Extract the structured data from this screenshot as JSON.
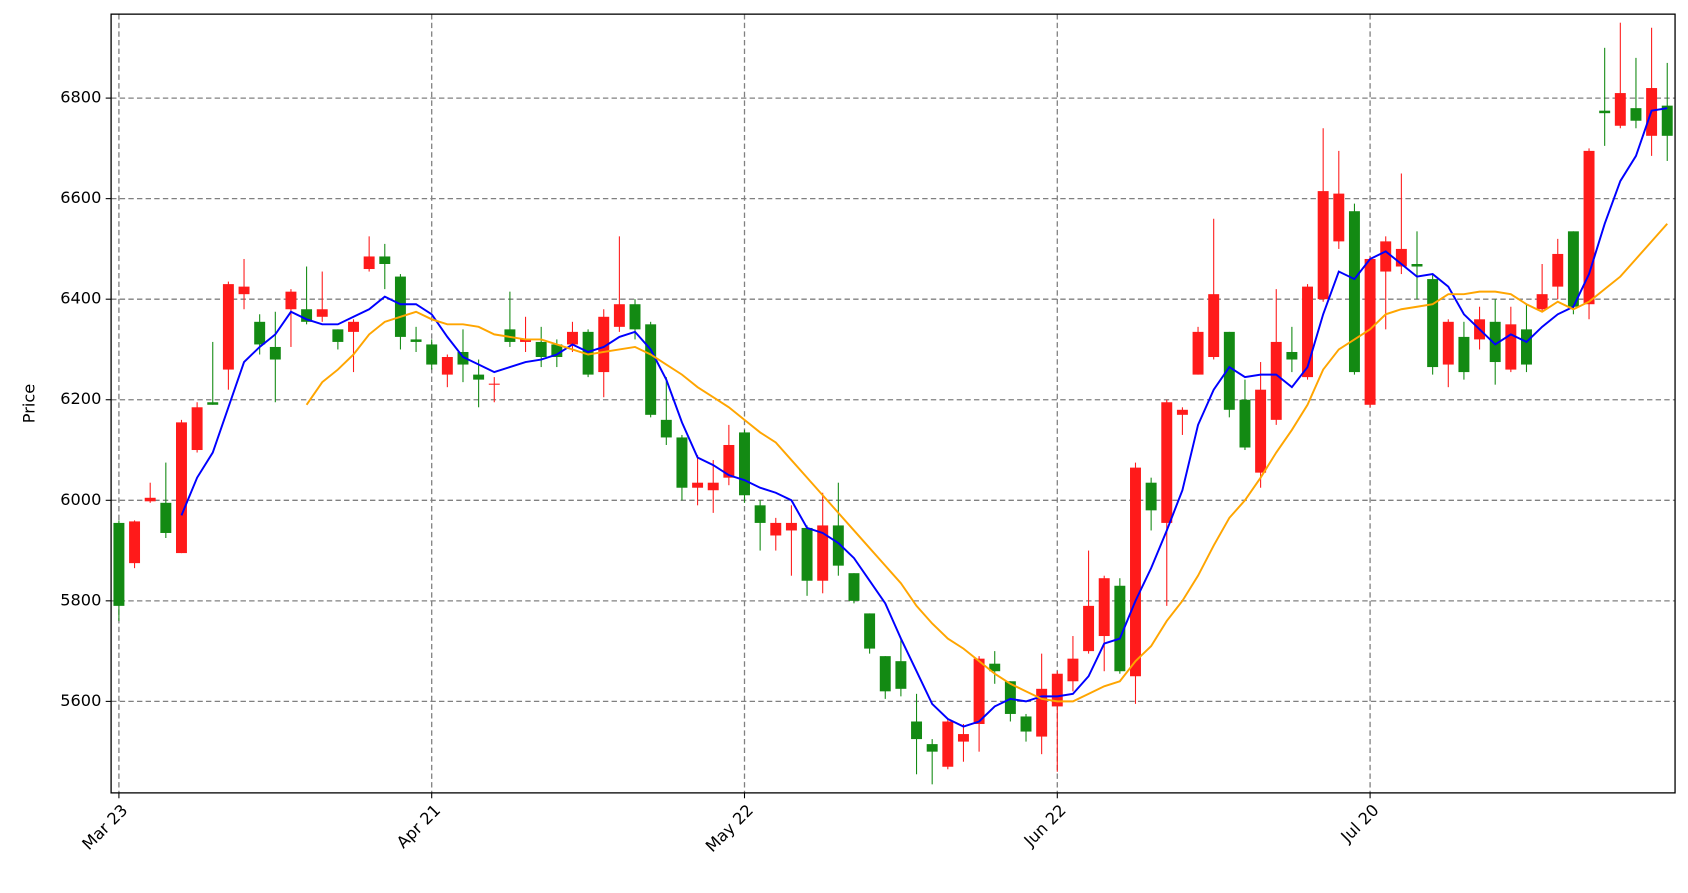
{
  "chart_data": {
    "type": "candlestick",
    "y_label": "Price",
    "xlim": [
      -0.5,
      99.5
    ],
    "xticks": [
      {
        "value": 0,
        "label": "Mar 23"
      },
      {
        "value": 20,
        "label": "Apr 21"
      },
      {
        "value": 40,
        "label": "May 22"
      },
      {
        "value": 60,
        "label": "Jun 22"
      },
      {
        "value": 80,
        "label": "Jul 20"
      }
    ],
    "ylim": [
      5418,
      6967
    ],
    "yticks": [
      5600,
      5800,
      6000,
      6200,
      6400,
      6600,
      6800
    ],
    "grid": true,
    "up_color": "#ff1a1a",
    "down_color": "#138a13",
    "open": [
      5955,
      5875,
      5998,
      5995,
      5895,
      6100,
      6195,
      6260,
      6410,
      6355,
      6305,
      6380,
      6380,
      6365,
      6340,
      6335,
      6460,
      6485,
      6445,
      6320,
      6310,
      6250,
      6295,
      6250,
      6230,
      6340,
      6315,
      6315,
      6310,
      6310,
      6335,
      6255,
      6345,
      6390,
      6350,
      6160,
      6125,
      6025,
      6020,
      6045,
      6135,
      5990,
      5930,
      5940,
      5945,
      5840,
      5950,
      5855,
      5775,
      5690,
      5680,
      5560,
      5515,
      5470,
      5520,
      5555,
      5675,
      5640,
      5570,
      5530,
      5590,
      5640,
      5700,
      5730,
      5830,
      5650,
      6035,
      5955,
      6170,
      6250,
      6285,
      6335,
      6200,
      6055,
      6160,
      6295,
      6245,
      6400,
      6515,
      6575,
      6190,
      6455,
      6465,
      6470,
      6440,
      6270,
      6325,
      6320,
      6355,
      6260,
      6340,
      6380,
      6425,
      6535,
      6390,
      6775,
      6745,
      6780,
      6725,
      6785
    ],
    "high": [
      5960,
      5960,
      6035,
      6075,
      6160,
      6195,
      6315,
      6435,
      6480,
      6370,
      6375,
      6420,
      6465,
      6455,
      6340,
      6360,
      6525,
      6510,
      6450,
      6345,
      6320,
      6290,
      6340,
      6280,
      6245,
      6415,
      6365,
      6345,
      6320,
      6355,
      6340,
      6380,
      6525,
      6400,
      6355,
      6245,
      6130,
      6090,
      6080,
      6150,
      6140,
      6000,
      5965,
      5990,
      5950,
      6015,
      6035,
      5855,
      5775,
      5690,
      5725,
      5615,
      5525,
      5565,
      5555,
      5690,
      5700,
      5640,
      5575,
      5695,
      5660,
      5730,
      5900,
      5850,
      5845,
      6075,
      6045,
      6200,
      6185,
      6345,
      6560,
      6335,
      6240,
      6275,
      6420,
      6345,
      6430,
      6740,
      6695,
      6590,
      6485,
      6525,
      6650,
      6535,
      6450,
      6360,
      6355,
      6385,
      6400,
      6385,
      6390,
      6470,
      6520,
      6535,
      6700,
      6900,
      6950,
      6880,
      6940,
      6870
    ],
    "low": [
      5760,
      5865,
      5995,
      5925,
      5895,
      6095,
      6190,
      6220,
      6380,
      6290,
      6195,
      6305,
      6350,
      6355,
      6300,
      6255,
      6455,
      6420,
      6300,
      6295,
      6260,
      6225,
      6235,
      6185,
      6195,
      6305,
      6295,
      6265,
      6265,
      6295,
      6245,
      6205,
      6335,
      6320,
      6165,
      6110,
      6000,
      5990,
      5975,
      6030,
      5995,
      5900,
      5900,
      5850,
      5810,
      5815,
      5850,
      5795,
      5695,
      5605,
      5610,
      5455,
      5435,
      5465,
      5480,
      5500,
      5635,
      5560,
      5520,
      5495,
      5460,
      5620,
      5695,
      5660,
      5655,
      5595,
      5940,
      5790,
      6130,
      6250,
      6280,
      6165,
      6100,
      6025,
      6150,
      6255,
      6240,
      6395,
      6500,
      6250,
      6185,
      6340,
      6450,
      6400,
      6250,
      6225,
      6240,
      6300,
      6230,
      6255,
      6255,
      6375,
      6400,
      6370,
      6360,
      6705,
      6740,
      6740,
      6685,
      6675
    ],
    "close": [
      5790,
      5958,
      6005,
      5935,
      6155,
      6185,
      6190,
      6430,
      6425,
      6310,
      6280,
      6415,
      6355,
      6380,
      6315,
      6355,
      6485,
      6470,
      6325,
      6315,
      6270,
      6285,
      6270,
      6240,
      6232,
      6315,
      6320,
      6285,
      6285,
      6335,
      6250,
      6365,
      6390,
      6340,
      6170,
      6125,
      6025,
      6035,
      6035,
      6110,
      6010,
      5955,
      5955,
      5955,
      5840,
      5950,
      5870,
      5800,
      5705,
      5620,
      5625,
      5525,
      5500,
      5560,
      5535,
      5685,
      5660,
      5575,
      5540,
      5625,
      5655,
      5685,
      5790,
      5845,
      5660,
      6065,
      5980,
      6195,
      6180,
      6335,
      6410,
      6180,
      6105,
      6220,
      6315,
      6280,
      6425,
      6615,
      6610,
      6255,
      6480,
      6515,
      6500,
      6465,
      6265,
      6355,
      6255,
      6360,
      6275,
      6350,
      6270,
      6410,
      6490,
      6385,
      6695,
      6770,
      6810,
      6755,
      6820,
      6725
    ],
    "series": [
      {
        "color": "#0000ff",
        "values": [
          null,
          null,
          null,
          null,
          5970,
          6045,
          6095,
          6185,
          6275,
          6305,
          6330,
          6375,
          6360,
          6350,
          6350,
          6365,
          6380,
          6405,
          6390,
          6390,
          6370,
          6325,
          6285,
          6270,
          6255,
          6265,
          6275,
          6280,
          6290,
          6310,
          6295,
          6305,
          6325,
          6335,
          6300,
          6240,
          6155,
          6085,
          6070,
          6050,
          6040,
          6025,
          6015,
          6000,
          5945,
          5935,
          5915,
          5885,
          5840,
          5795,
          5725,
          5660,
          5595,
          5565,
          5550,
          5560,
          5590,
          5605,
          5600,
          5610,
          5610,
          5615,
          5650,
          5715,
          5725,
          5800,
          5865,
          5940,
          6020,
          6150,
          6220,
          6265,
          6245,
          6250,
          6250,
          6225,
          6265,
          6370,
          6455,
          6440,
          6480,
          6495,
          6470,
          6445,
          6450,
          6425,
          6370,
          6340,
          6310,
          6330,
          6315,
          6345,
          6370,
          6385,
          6450,
          6550,
          6635,
          6685,
          6775,
          6780
        ]
      },
      {
        "color": "#ffa500",
        "values": [
          null,
          null,
          null,
          null,
          null,
          null,
          null,
          null,
          null,
          null,
          null,
          null,
          6190,
          6235,
          6260,
          6290,
          6330,
          6355,
          6365,
          6375,
          6360,
          6350,
          6350,
          6345,
          6330,
          6325,
          6320,
          6320,
          6310,
          6300,
          6290,
          6295,
          6300,
          6305,
          6290,
          6270,
          6250,
          6225,
          6205,
          6185,
          6160,
          6135,
          6115,
          6080,
          6045,
          6010,
          5975,
          5940,
          5905,
          5870,
          5835,
          5790,
          5755,
          5725,
          5705,
          5680,
          5655,
          5635,
          5620,
          5605,
          5600,
          5600,
          5615,
          5630,
          5640,
          5680,
          5710,
          5760,
          5800,
          5850,
          5910,
          5965,
          6000,
          6045,
          6095,
          6140,
          6190,
          6260,
          6300,
          6320,
          6340,
          6370,
          6380,
          6385,
          6390,
          6410,
          6410,
          6415,
          6415,
          6410,
          6390,
          6375,
          6395,
          6380,
          6395,
          6420,
          6445,
          6480,
          6515,
          6550
        ]
      }
    ]
  }
}
